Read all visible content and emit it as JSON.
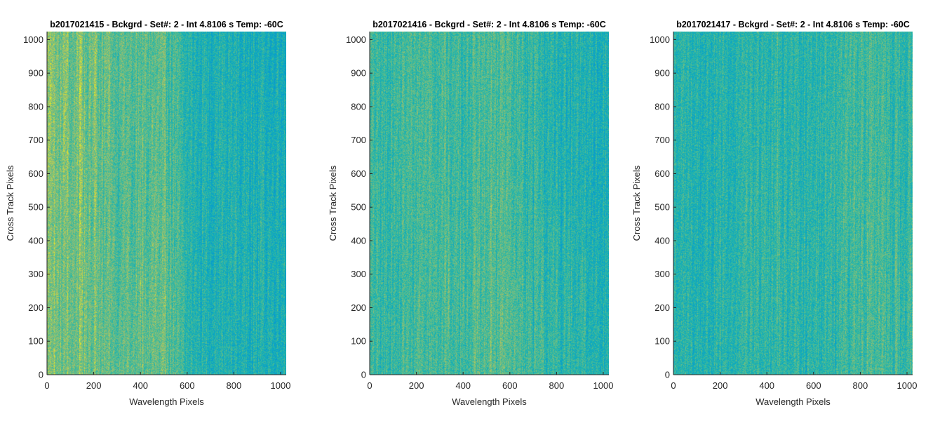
{
  "chart_data": [
    {
      "type": "heatmap",
      "title": "b2017021415 - Bckgrd - Set#: 2 - Int 4.8106 s Temp: -60C",
      "xlabel": "Wavelength Pixels",
      "ylabel": "Cross Track Pixels",
      "xlim": [
        0,
        1024
      ],
      "ylim": [
        0,
        1024
      ],
      "xticks": [
        0,
        200,
        400,
        600,
        800,
        1000
      ],
      "yticks": [
        0,
        100,
        200,
        300,
        400,
        500,
        600,
        700,
        800,
        900,
        1000
      ],
      "colormap": "parula",
      "colors": {
        "low": "#1a85d8",
        "mid": "#19a5c8",
        "high": "#a8c060"
      },
      "column_profile": {
        "x": [
          0,
          50,
          100,
          150,
          200,
          250,
          300,
          350,
          400,
          450,
          500,
          550,
          600,
          650,
          700,
          750,
          800,
          850,
          900,
          950,
          1024
        ],
        "level": [
          0.8,
          0.66,
          0.64,
          0.68,
          0.66,
          0.6,
          0.58,
          0.58,
          0.6,
          0.62,
          0.6,
          0.5,
          0.28,
          0.24,
          0.22,
          0.22,
          0.2,
          0.18,
          0.18,
          0.16,
          0.16
        ]
      }
    },
    {
      "type": "heatmap",
      "title": "b2017021416 - Bckgrd - Set#: 2 - Int 4.8106 s Temp: -60C",
      "xlabel": "Wavelength Pixels",
      "ylabel": "Cross Track Pixels",
      "xlim": [
        0,
        1024
      ],
      "ylim": [
        0,
        1024
      ],
      "xticks": [
        0,
        200,
        400,
        600,
        800,
        1000
      ],
      "yticks": [
        0,
        100,
        200,
        300,
        400,
        500,
        600,
        700,
        800,
        900,
        1000
      ],
      "colormap": "parula",
      "colors": {
        "low": "#1a85d8",
        "mid": "#19a5c8",
        "high": "#a8c060"
      },
      "column_profile": {
        "x": [
          0,
          50,
          100,
          150,
          200,
          250,
          300,
          350,
          400,
          450,
          500,
          550,
          600,
          650,
          700,
          750,
          800,
          850,
          900,
          950,
          1024
        ],
        "level": [
          0.4,
          0.38,
          0.4,
          0.44,
          0.48,
          0.5,
          0.48,
          0.44,
          0.44,
          0.48,
          0.52,
          0.56,
          0.52,
          0.44,
          0.38,
          0.34,
          0.32,
          0.3,
          0.28,
          0.26,
          0.24
        ]
      }
    },
    {
      "type": "heatmap",
      "title": "b2017021417 - Bckgrd - Set#: 2 - Int 4.8106 s Temp: -60C",
      "xlabel": "Wavelength Pixels",
      "ylabel": "Cross Track Pixels",
      "xlim": [
        0,
        1024
      ],
      "ylim": [
        0,
        1024
      ],
      "xticks": [
        0,
        200,
        400,
        600,
        800,
        1000
      ],
      "yticks": [
        0,
        100,
        200,
        300,
        400,
        500,
        600,
        700,
        800,
        900,
        1000
      ],
      "colormap": "parula",
      "colors": {
        "low": "#1a85d8",
        "mid": "#19a5c8",
        "high": "#a8c060"
      },
      "column_profile": {
        "x": [
          0,
          50,
          100,
          150,
          200,
          250,
          300,
          350,
          400,
          450,
          500,
          550,
          600,
          650,
          700,
          750,
          800,
          850,
          900,
          950,
          1024
        ],
        "level": [
          0.3,
          0.28,
          0.26,
          0.26,
          0.26,
          0.28,
          0.3,
          0.32,
          0.34,
          0.32,
          0.3,
          0.3,
          0.32,
          0.34,
          0.36,
          0.4,
          0.44,
          0.46,
          0.4,
          0.34,
          0.3
        ]
      }
    }
  ]
}
